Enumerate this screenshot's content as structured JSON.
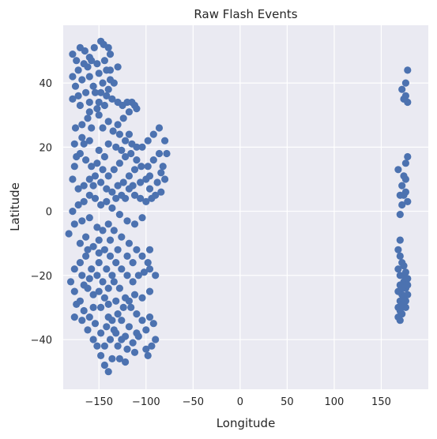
{
  "chart_data": {
    "type": "scatter",
    "title": "Raw Flash Events",
    "xlabel": "Longitude",
    "ylabel": "Latitude",
    "xlim": [
      -188,
      200
    ],
    "ylim": [
      -55.5,
      58
    ],
    "xticks": [
      -150,
      -100,
      -50,
      0,
      50,
      100,
      150
    ],
    "xtick_labels": [
      "−150",
      "−100",
      "−50",
      "0",
      "50",
      "100",
      "150"
    ],
    "yticks": [
      -40,
      -20,
      0,
      20,
      40
    ],
    "ytick_labels": [
      "−40",
      "−20",
      "0",
      "20",
      "40"
    ],
    "grid": true,
    "background": "#eaeaf2",
    "point_color": "#4c72b0",
    "series": [
      {
        "points": [
          [
            -178,
            49
          ],
          [
            -170,
            51
          ],
          [
            -165,
            50
          ],
          [
            -160,
            48
          ],
          [
            -155,
            51
          ],
          [
            -148,
            53
          ],
          [
            -145,
            52
          ],
          [
            -140,
            51
          ],
          [
            -138,
            49
          ],
          [
            -144,
            47
          ],
          [
            -152,
            46
          ],
          [
            -162,
            45
          ],
          [
            -172,
            44
          ],
          [
            -178,
            42
          ],
          [
            -175,
            39
          ],
          [
            -168,
            41
          ],
          [
            -160,
            42
          ],
          [
            -150,
            43
          ],
          [
            -142,
            44
          ],
          [
            -138,
            41
          ],
          [
            -134,
            40
          ],
          [
            -140,
            38
          ],
          [
            -148,
            37
          ],
          [
            -156,
            39
          ],
          [
            -164,
            37
          ],
          [
            -172,
            36
          ],
          [
            -178,
            35
          ],
          [
            -170,
            33
          ],
          [
            -160,
            34
          ],
          [
            -150,
            34
          ],
          [
            -142,
            36
          ],
          [
            -136,
            35
          ],
          [
            -130,
            34
          ],
          [
            -125,
            33
          ],
          [
            -120,
            34
          ],
          [
            -115,
            34
          ],
          [
            -112,
            33
          ],
          [
            -110,
            32
          ],
          [
            -118,
            31
          ],
          [
            -124,
            29
          ],
          [
            -130,
            27
          ],
          [
            -140,
            28
          ],
          [
            -150,
            30
          ],
          [
            -160,
            31
          ],
          [
            -168,
            27
          ],
          [
            -175,
            26
          ],
          [
            -158,
            26
          ],
          [
            -146,
            26
          ],
          [
            -135,
            25
          ],
          [
            -128,
            24
          ],
          [
            -122,
            22
          ],
          [
            -115,
            21
          ],
          [
            -110,
            20
          ],
          [
            -104,
            20
          ],
          [
            -98,
            22
          ],
          [
            -92,
            24
          ],
          [
            -86,
            26
          ],
          [
            -80,
            22
          ],
          [
            -78,
            18
          ],
          [
            -82,
            14
          ],
          [
            -80,
            10
          ],
          [
            -84,
            6
          ],
          [
            -90,
            5
          ],
          [
            -96,
            7
          ],
          [
            -100,
            10
          ],
          [
            -105,
            14
          ],
          [
            -110,
            16
          ],
          [
            -116,
            18
          ],
          [
            -122,
            17
          ],
          [
            -128,
            15
          ],
          [
            -134,
            13
          ],
          [
            -140,
            11
          ],
          [
            -146,
            13
          ],
          [
            -152,
            15
          ],
          [
            -158,
            14
          ],
          [
            -164,
            16
          ],
          [
            -170,
            18
          ],
          [
            -176,
            14
          ],
          [
            -178,
            10
          ],
          [
            -172,
            7
          ],
          [
            -166,
            8
          ],
          [
            -160,
            10
          ],
          [
            -154,
            11
          ],
          [
            -148,
            9
          ],
          [
            -142,
            7
          ],
          [
            -136,
            6
          ],
          [
            -130,
            8
          ],
          [
            -124,
            9
          ],
          [
            -118,
            7
          ],
          [
            -112,
            5
          ],
          [
            -106,
            4
          ],
          [
            -100,
            3
          ],
          [
            -94,
            4
          ],
          [
            -104,
            -2
          ],
          [
            -112,
            -4
          ],
          [
            -120,
            -3
          ],
          [
            -128,
            -1
          ],
          [
            -136,
            1
          ],
          [
            -142,
            3
          ],
          [
            -148,
            2
          ],
          [
            -154,
            4
          ],
          [
            -160,
            5
          ],
          [
            -166,
            3
          ],
          [
            -172,
            2
          ],
          [
            -178,
            0
          ],
          [
            -176,
            -4
          ],
          [
            -168,
            -3
          ],
          [
            -160,
            -2
          ],
          [
            -152,
            -5
          ],
          [
            -146,
            -6
          ],
          [
            -140,
            -4
          ],
          [
            -134,
            -6
          ],
          [
            -182,
            -7
          ],
          [
            -170,
            -10
          ],
          [
            -162,
            -12
          ],
          [
            -156,
            -11
          ],
          [
            -150,
            -13
          ],
          [
            -144,
            -12
          ],
          [
            -138,
            -14
          ],
          [
            -132,
            -16
          ],
          [
            -126,
            -18
          ],
          [
            -120,
            -20
          ],
          [
            -114,
            -22
          ],
          [
            -108,
            -20
          ],
          [
            -102,
            -19
          ],
          [
            -96,
            -18
          ],
          [
            -90,
            -20
          ],
          [
            -96,
            -25
          ],
          [
            -104,
            -27
          ],
          [
            -112,
            -26
          ],
          [
            -118,
            -28
          ],
          [
            -124,
            -30
          ],
          [
            -130,
            -32
          ],
          [
            -136,
            -34
          ],
          [
            -142,
            -36
          ],
          [
            -148,
            -38
          ],
          [
            -154,
            -35
          ],
          [
            -160,
            -33
          ],
          [
            -166,
            -31
          ],
          [
            -170,
            -28
          ],
          [
            -176,
            -25
          ],
          [
            -180,
            -22
          ],
          [
            -176,
            -18
          ],
          [
            -170,
            -16
          ],
          [
            -164,
            -14
          ],
          [
            -158,
            -18
          ],
          [
            -152,
            -20
          ],
          [
            -146,
            -22
          ],
          [
            -140,
            -24
          ],
          [
            -134,
            -22
          ],
          [
            -128,
            -24
          ],
          [
            -122,
            -27
          ],
          [
            -116,
            -30
          ],
          [
            -110,
            -32
          ],
          [
            -104,
            -34
          ],
          [
            -96,
            -33
          ],
          [
            -92,
            -35
          ],
          [
            -100,
            -37
          ],
          [
            -108,
            -39
          ],
          [
            -114,
            -41
          ],
          [
            -120,
            -43
          ],
          [
            -126,
            -40
          ],
          [
            -132,
            -38
          ],
          [
            -138,
            -40
          ],
          [
            -144,
            -42
          ],
          [
            -148,
            -45
          ],
          [
            -144,
            -48
          ],
          [
            -140,
            -50
          ],
          [
            -136,
            -46
          ],
          [
            -130,
            -42
          ],
          [
            -122,
            -39
          ],
          [
            -112,
            -44
          ],
          [
            -100,
            -43
          ],
          [
            -94,
            -42
          ],
          [
            -90,
            -40
          ],
          [
            -98,
            -45
          ],
          [
            -156,
            -40
          ],
          [
            -162,
            -37
          ],
          [
            -168,
            -34
          ],
          [
            -176,
            -33
          ],
          [
            -148,
            -30
          ],
          [
            -140,
            -29
          ],
          [
            -132,
            -28
          ],
          [
            -156,
            -26
          ],
          [
            -162,
            -24
          ],
          [
            -150,
            -16
          ],
          [
            -142,
            -18
          ],
          [
            -136,
            -20
          ],
          [
            -164,
            -8
          ],
          [
            -150,
            -9
          ],
          [
            -126,
            -8
          ],
          [
            -118,
            -10
          ],
          [
            -110,
            -12
          ],
          [
            -104,
            -14
          ],
          [
            -96,
            -12
          ],
          [
            -98,
            -16
          ],
          [
            -114,
            -16
          ],
          [
            -120,
            -14
          ],
          [
            -130,
            -12
          ],
          [
            -138,
            -9
          ],
          [
            -126,
            5
          ],
          [
            -118,
            11
          ],
          [
            -112,
            13
          ],
          [
            -98,
            14
          ],
          [
            -92,
            16
          ],
          [
            -86,
            18
          ],
          [
            -84,
            12
          ],
          [
            -88,
            9
          ],
          [
            -96,
            11
          ],
          [
            -106,
            9
          ],
          [
            -114,
            8
          ],
          [
            -122,
            4
          ],
          [
            -132,
            4
          ],
          [
            -144,
            17
          ],
          [
            -150,
            19
          ],
          [
            -160,
            22
          ],
          [
            -168,
            23
          ],
          [
            -176,
            21
          ],
          [
            -140,
            21
          ],
          [
            -132,
            20
          ],
          [
            -126,
            19
          ],
          [
            -118,
            24
          ],
          [
            -130,
            45
          ],
          [
            -158,
            47
          ],
          [
            -166,
            46
          ],
          [
            -174,
            47
          ],
          [
            -154,
            37
          ],
          [
            -146,
            40
          ],
          [
            -138,
            44
          ],
          [
            -144,
            33
          ],
          [
            -152,
            32
          ],
          [
            -162,
            29
          ],
          [
            -166,
            21
          ],
          [
            -174,
            17
          ],
          [
            -156,
            8
          ],
          [
            -168,
            -20
          ],
          [
            -160,
            -21
          ],
          [
            -150,
            -25
          ],
          [
            -144,
            -27
          ],
          [
            -156,
            -30
          ],
          [
            -174,
            -29
          ],
          [
            -166,
            -23
          ],
          [
            -134,
            -37
          ],
          [
            -126,
            -34
          ],
          [
            -118,
            -36
          ],
          [
            -110,
            -38
          ],
          [
            -128,
            -46
          ],
          [
            -122,
            -47
          ],
          [
            -140,
            -33
          ],
          [
            -152,
            -42
          ],
          [
            168,
            13
          ],
          [
            174,
            11
          ],
          [
            176,
            15
          ],
          [
            178,
            17
          ],
          [
            176,
            10
          ],
          [
            172,
            8
          ],
          [
            170,
            5
          ],
          [
            174,
            5
          ],
          [
            176,
            6
          ],
          [
            178,
            3
          ],
          [
            172,
            2
          ],
          [
            170,
            -1
          ],
          [
            178,
            44
          ],
          [
            176,
            40
          ],
          [
            172,
            38
          ],
          [
            174,
            35
          ],
          [
            178,
            34
          ],
          [
            176,
            36
          ],
          [
            170,
            -9
          ],
          [
            168,
            -12
          ],
          [
            170,
            -14
          ],
          [
            172,
            -16
          ],
          [
            168,
            -18
          ],
          [
            170,
            -20
          ],
          [
            174,
            -22
          ],
          [
            178,
            -21
          ],
          [
            176,
            -24
          ],
          [
            172,
            -26
          ],
          [
            170,
            -28
          ],
          [
            168,
            -30
          ],
          [
            172,
            -32
          ],
          [
            170,
            -34
          ],
          [
            176,
            -30
          ],
          [
            178,
            -26
          ],
          [
            174,
            -17
          ],
          [
            176,
            -19
          ],
          [
            170,
            -23
          ],
          [
            168,
            -25
          ],
          [
            172,
            -29
          ],
          [
            174,
            -27
          ],
          [
            176,
            -28
          ],
          [
            178,
            -23
          ],
          [
            170,
            -31
          ],
          [
            168,
            -33
          ],
          [
            172,
            -24
          ],
          [
            174,
            -20
          ]
        ]
      }
    ]
  }
}
